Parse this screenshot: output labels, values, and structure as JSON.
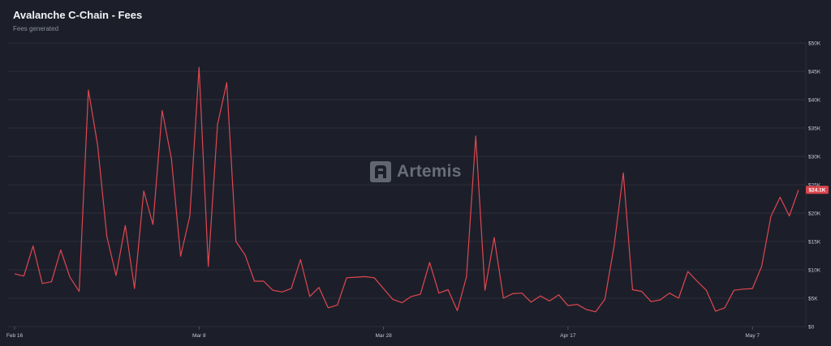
{
  "header": {
    "title": "Avalanche C-Chain - Fees",
    "subtitle": "Fees generated"
  },
  "watermark": {
    "text": "Artemis"
  },
  "colors": {
    "background": "#1c1f2a",
    "grid": "#30333f",
    "line": "#e0474f",
    "badge": "#d9434b"
  },
  "chart_data": {
    "type": "line",
    "title": "Avalanche C-Chain - Fees",
    "subtitle": "Fees generated",
    "xlabel": "",
    "ylabel": "",
    "ylim": [
      0,
      50000
    ],
    "yticks": [
      0,
      5000,
      10000,
      15000,
      20000,
      25000,
      30000,
      35000,
      40000,
      45000,
      50000
    ],
    "ytick_labels": [
      "$0",
      "$5K",
      "$10K",
      "$15K",
      "$20K",
      "$25K",
      "$30K",
      "$35K",
      "$40K",
      "$45K",
      "$50K"
    ],
    "xtick_labels": [
      "Feb 16",
      "Mar 8",
      "Mar 28",
      "Apr 17",
      "May 7"
    ],
    "xtick_indices": [
      0,
      20,
      40,
      60,
      80
    ],
    "y_axis_position": "right",
    "grid": true,
    "last_value_label": "$24.1K",
    "series": [
      {
        "values": [
          9300,
          8900,
          14200,
          7600,
          7900,
          13500,
          8700,
          6200,
          41700,
          32000,
          15900,
          9000,
          17800,
          6700,
          23900,
          18000,
          38100,
          29600,
          12400,
          19500,
          45700,
          10600,
          35600,
          43000,
          15000,
          12600,
          8000,
          8000,
          6400,
          6100,
          6700,
          11800,
          5300,
          6900,
          3300,
          3800,
          8600,
          8700,
          8800,
          8600,
          6700,
          4800,
          4200,
          5300,
          5700,
          11300,
          5900,
          6500,
          2800,
          8800,
          33600,
          6400,
          15700,
          5000,
          5800,
          5900,
          4300,
          5400,
          4500,
          5600,
          3700,
          3900,
          3000,
          2600,
          4800,
          14200,
          27100,
          6500,
          6200,
          4400,
          4700,
          5900,
          5000,
          9700,
          8000,
          6400,
          2700,
          3300,
          6400,
          6600,
          6700,
          10600,
          19400,
          22800,
          19500,
          24100
        ]
      }
    ]
  }
}
